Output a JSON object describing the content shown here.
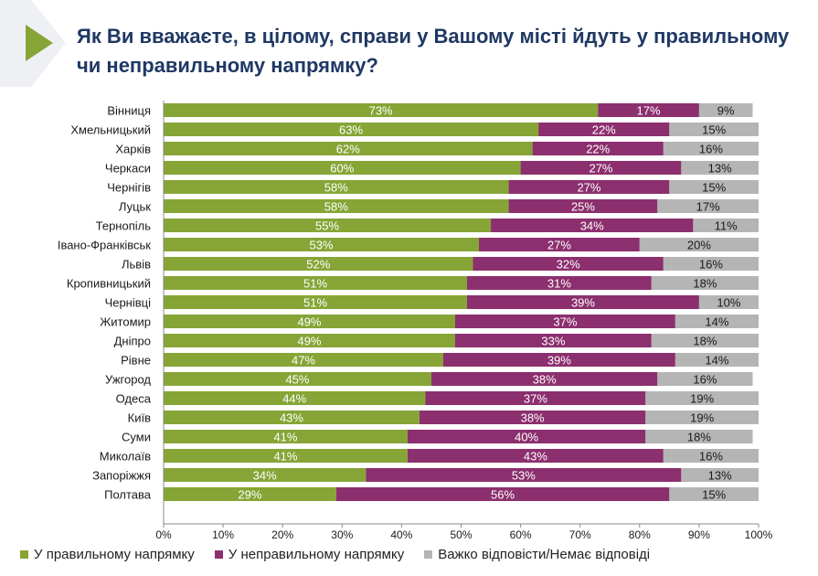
{
  "title": "Як Ви вважаєте, в цілому, справи у Вашому місті йдуть у правильному чи неправильному напрямку?",
  "chart_data": {
    "type": "bar",
    "orientation": "horizontal",
    "stacked": true,
    "categories": [
      "Вінниця",
      "Хмельницький",
      "Харків",
      "Черкаси",
      "Чернігів",
      "Луцьк",
      "Тернопіль",
      "Івано-Франківськ",
      "Львів",
      "Кропивницький",
      "Чернівці",
      "Житомир",
      "Дніпро",
      "Рівне",
      "Ужгород",
      "Одеса",
      "Київ",
      "Суми",
      "Миколаїв",
      "Запоріжжя",
      "Полтава"
    ],
    "series": [
      {
        "name": "У правильному напрямку",
        "color": "#86a536",
        "values": [
          73,
          63,
          62,
          60,
          58,
          58,
          55,
          53,
          52,
          51,
          51,
          49,
          49,
          47,
          45,
          44,
          43,
          41,
          41,
          34,
          29
        ]
      },
      {
        "name": "У неправильному напрямку",
        "color": "#8c2f6e",
        "values": [
          17,
          22,
          22,
          27,
          27,
          25,
          34,
          27,
          32,
          31,
          39,
          37,
          33,
          39,
          38,
          37,
          38,
          40,
          43,
          53,
          56
        ]
      },
      {
        "name": "Важко відповісти/Немає відповіді",
        "color": "#b5b5b5",
        "values": [
          9,
          15,
          16,
          13,
          15,
          17,
          11,
          20,
          16,
          18,
          10,
          14,
          18,
          14,
          16,
          19,
          19,
          18,
          16,
          13,
          15
        ]
      }
    ],
    "xlim": [
      0,
      100
    ],
    "x_ticks": [
      "0%",
      "10%",
      "20%",
      "30%",
      "40%",
      "50%",
      "60%",
      "70%",
      "80%",
      "90%",
      "100%"
    ],
    "value_suffix": "%",
    "legend_position": "bottom",
    "grid": false
  }
}
